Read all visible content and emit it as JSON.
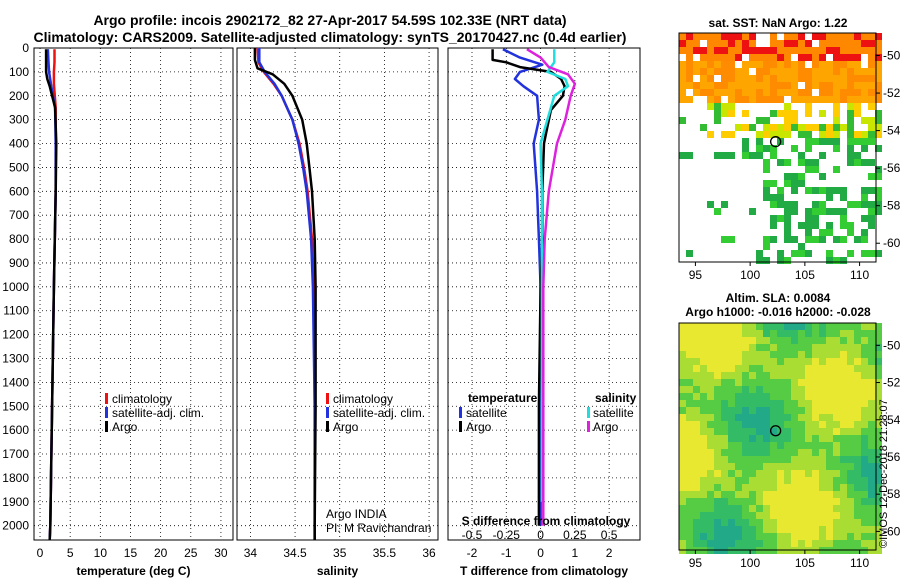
{
  "header": {
    "title_line1": "Argo profile: incois 2902172_82 27-Apr-2017 54.59S 102.33E (NRT data)",
    "title_line2": "Climatology: CARS2009. Satellite-adjusted climatology: synTS_20170427.nc (0.4d earlier)"
  },
  "colors": {
    "climatology": "#ee1111",
    "satellite": "#2233dd",
    "argo": "#000000",
    "sat_salinity": "#22dddd",
    "argo_salinity": "#dd22dd"
  },
  "chart_data": [
    {
      "type": "line",
      "name": "temperature",
      "xlabel": "temperature (deg C)",
      "xlim": [
        -1,
        32
      ],
      "xticks": [
        0,
        5,
        10,
        15,
        20,
        25,
        30
      ],
      "ylim": [
        2060,
        0
      ],
      "yticks": [
        0,
        100,
        200,
        300,
        400,
        500,
        600,
        700,
        800,
        900,
        1000,
        1100,
        1200,
        1300,
        1400,
        1500,
        1600,
        1700,
        1800,
        1900,
        2000
      ],
      "legend": [
        "climatology",
        "satellite-adj. clim.",
        "Argo"
      ],
      "series": [
        {
          "name": "climatology",
          "depth": [
            5,
            60,
            100,
            150,
            250,
            400,
            600,
            1000,
            1500,
            2000,
            2060
          ],
          "values": [
            2.4,
            2.4,
            2.3,
            2.3,
            2.6,
            2.6,
            2.6,
            2.3,
            2.0,
            1.7,
            1.6
          ]
        },
        {
          "name": "satellite-adj. clim.",
          "depth": [
            5,
            60,
            100,
            150,
            250,
            400,
            600,
            1000,
            1500,
            2000,
            2060
          ],
          "values": [
            1.3,
            1.4,
            1.5,
            1.8,
            2.5,
            2.6,
            2.6,
            2.3,
            2.0,
            1.7,
            1.6
          ]
        },
        {
          "name": "Argo",
          "depth": [
            5,
            50,
            100,
            130,
            160,
            250,
            400,
            600,
            1000,
            1500,
            2000,
            2060
          ],
          "values": [
            1.0,
            1.0,
            1.0,
            1.2,
            1.6,
            2.5,
            2.7,
            2.6,
            2.3,
            2.0,
            1.7,
            1.6
          ]
        }
      ]
    },
    {
      "type": "line",
      "name": "salinity",
      "xlabel": "salinity",
      "xlim": [
        33.85,
        36.1
      ],
      "xticks": [
        34,
        34.5,
        35,
        35.5,
        36
      ],
      "ylim": [
        2060,
        0
      ],
      "legend": [
        "climatology",
        "satellite-adj. clim.",
        "Argo"
      ],
      "series": [
        {
          "name": "climatology",
          "depth": [
            0,
            60,
            100,
            150,
            200,
            300,
            400,
            500,
            600,
            800,
            1000,
            1500,
            2000,
            2060
          ],
          "values": [
            34.08,
            34.09,
            34.15,
            34.26,
            34.35,
            34.47,
            34.55,
            34.6,
            34.64,
            34.69,
            34.71,
            34.72,
            34.72,
            34.72
          ]
        },
        {
          "name": "satellite-adj. clim.",
          "depth": [
            0,
            60,
            100,
            150,
            200,
            300,
            400,
            500,
            600,
            800,
            1000,
            1500,
            2000,
            2060
          ],
          "values": [
            34.1,
            34.1,
            34.16,
            34.27,
            34.35,
            34.47,
            34.54,
            34.59,
            34.63,
            34.68,
            34.7,
            34.72,
            34.72,
            34.72
          ]
        },
        {
          "name": "Argo",
          "depth": [
            0,
            50,
            85,
            110,
            150,
            200,
            300,
            400,
            500,
            600,
            800,
            1000,
            1500,
            2000,
            2060
          ],
          "values": [
            34.05,
            34.05,
            34.08,
            34.25,
            34.38,
            34.47,
            34.58,
            34.63,
            34.66,
            34.69,
            34.72,
            34.73,
            34.73,
            34.72,
            34.72
          ]
        }
      ],
      "annotations": [
        "Argo INDIA",
        "PI: M Ravichandran"
      ]
    },
    {
      "type": "line",
      "name": "differences",
      "xlabel": "T difference from climatology",
      "x2label": "S difference from climatology",
      "xlim": [
        -2.7,
        2.9
      ],
      "xticks": [
        -2,
        -1,
        0,
        1,
        2
      ],
      "x2lim": [
        -0.675,
        0.725
      ],
      "x2ticks": [
        -0.5,
        -0.25,
        0,
        0.25,
        0.5
      ],
      "x2ticklabels": [
        "-0.5",
        "-0.25",
        "0",
        "0.25",
        "0.5"
      ],
      "ylim": [
        2060,
        0
      ],
      "legend_left_title": "temperature",
      "legend_right_title": "salinity",
      "legend_left": [
        "satellite",
        "Argo"
      ],
      "legend_right": [
        "satellite",
        "Argo"
      ],
      "series": [
        {
          "name": "T satellite",
          "axis": "T",
          "depth": [
            5,
            40,
            70,
            100,
            130,
            160,
            200,
            300,
            400,
            600,
            800,
            1000,
            1500,
            2000
          ],
          "values": [
            -1.1,
            -0.6,
            0.05,
            -0.6,
            -0.75,
            -0.5,
            -0.1,
            -0.05,
            -0.2,
            -0.1,
            -0.05,
            0,
            0,
            0
          ]
        },
        {
          "name": "T Argo",
          "axis": "T",
          "depth": [
            5,
            50,
            60,
            80,
            100,
            130,
            160,
            200,
            260,
            330,
            400,
            600,
            800,
            1000,
            1500,
            2000
          ],
          "values": [
            -1.4,
            -1.4,
            -1.0,
            -0.6,
            0.3,
            0.6,
            0.7,
            0.65,
            0.3,
            0.2,
            0.1,
            0.05,
            0.05,
            0,
            -0.05,
            -0.05
          ]
        },
        {
          "name": "S satellite",
          "axis": "S",
          "depth": [
            5,
            60,
            100,
            130,
            160,
            200,
            300,
            400,
            600,
            800,
            1000,
            1500,
            1900
          ],
          "values": [
            0.1,
            0.1,
            0.05,
            0.18,
            0.2,
            0.1,
            0.05,
            0,
            0.01,
            0.01,
            0.01,
            0.01,
            0.01
          ]
        },
        {
          "name": "S Argo",
          "axis": "S",
          "depth": [
            5,
            40,
            80,
            110,
            150,
            200,
            300,
            400,
            600,
            800,
            1000,
            1500,
            2000
          ],
          "values": [
            -0.1,
            0.0,
            0.06,
            0.2,
            0.25,
            0.22,
            0.18,
            0.12,
            0.06,
            0.03,
            0.02,
            0.02,
            0.02
          ]
        }
      ]
    },
    {
      "type": "heatmap",
      "name": "sst_map",
      "title": "sat. SST: NaN Argo: 1.22",
      "xticks": [
        95,
        100,
        105,
        110
      ],
      "yticks": [
        -50,
        -52,
        -54,
        -56,
        -58,
        -60
      ],
      "xlim": [
        93.5,
        111.5
      ],
      "ylim": [
        -61,
        -48.8
      ],
      "argo_position": {
        "lon": 102.33,
        "lat": -54.59
      }
    },
    {
      "type": "heatmap",
      "name": "sla_map",
      "title": "Altim. SLA: 0.0084",
      "subtitle": "Argo h1000: -0.016 h2000: -0.028",
      "xticks": [
        95,
        100,
        105,
        110
      ],
      "yticks": [
        -50,
        -52,
        -54,
        -56,
        -58,
        -60
      ],
      "xlim": [
        93.5,
        111.5
      ],
      "ylim": [
        -61,
        -48.8
      ],
      "argo_position": {
        "lon": 102.33,
        "lat": -54.59
      }
    }
  ],
  "footer": {
    "watermark": "©IMOS 12-Dec-2018 21:28:07"
  }
}
